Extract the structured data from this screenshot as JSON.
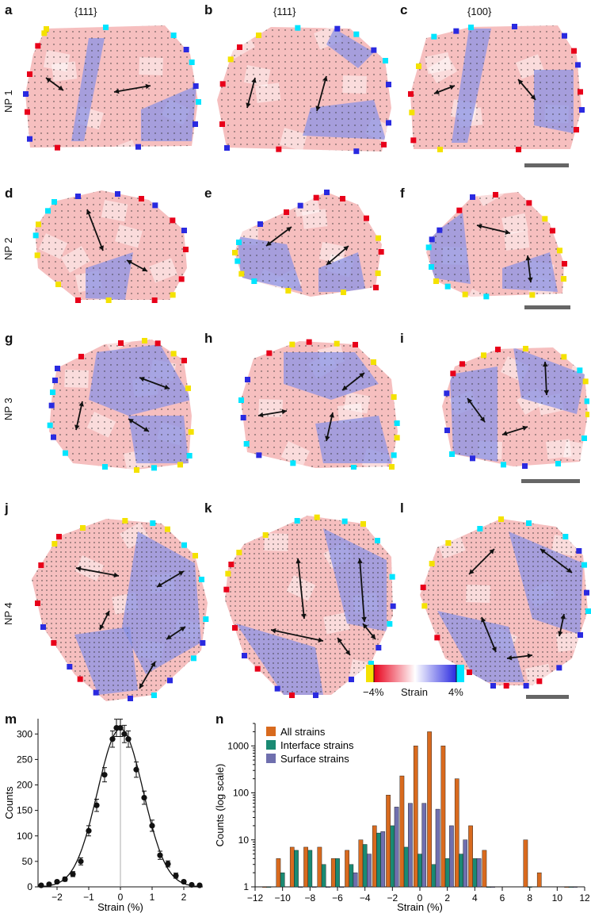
{
  "panel_labels": [
    "a",
    "b",
    "c",
    "d",
    "e",
    "f",
    "g",
    "h",
    "i",
    "j",
    "k",
    "l",
    "m",
    "n"
  ],
  "facets": [
    "{111}",
    "{111}",
    "{100}"
  ],
  "rows": [
    "NP 1",
    "NP 2",
    "NP 3",
    "NP 4"
  ],
  "colorbar": {
    "min_label": "−4%",
    "mid_label": "Strain",
    "max_label": "4%",
    "colors": [
      "#f4e200",
      "#e8001a",
      "#ffffff",
      "#2a2ae0",
      "#00e5ff"
    ]
  },
  "map_colors": {
    "tensile": "#ef8a8a",
    "compressive": "#8b93e6"
  },
  "chart_data": [
    {
      "type": "scatter",
      "panel": "m",
      "xlabel": "Strain (%)",
      "ylabel": "Counts",
      "xlim": [
        -2.6,
        2.6
      ],
      "ylim": [
        0,
        330
      ],
      "xticks": [
        -2,
        -1,
        0,
        1,
        2
      ],
      "yticks": [
        0,
        50,
        100,
        150,
        200,
        250,
        300
      ],
      "points": [
        {
          "x": -2.5,
          "y": 3,
          "err": 2
        },
        {
          "x": -2.25,
          "y": 5,
          "err": 2
        },
        {
          "x": -2.0,
          "y": 10,
          "err": 3
        },
        {
          "x": -1.75,
          "y": 15,
          "err": 4
        },
        {
          "x": -1.5,
          "y": 25,
          "err": 5
        },
        {
          "x": -1.25,
          "y": 50,
          "err": 7
        },
        {
          "x": -1.0,
          "y": 110,
          "err": 10
        },
        {
          "x": -0.75,
          "y": 160,
          "err": 12
        },
        {
          "x": -0.5,
          "y": 220,
          "err": 14
        },
        {
          "x": -0.25,
          "y": 290,
          "err": 16
        },
        {
          "x": -0.125,
          "y": 312,
          "err": 17
        },
        {
          "x": 0.0,
          "y": 312,
          "err": 17
        },
        {
          "x": 0.125,
          "y": 300,
          "err": 17
        },
        {
          "x": 0.25,
          "y": 290,
          "err": 16
        },
        {
          "x": 0.5,
          "y": 230,
          "err": 15
        },
        {
          "x": 0.75,
          "y": 175,
          "err": 13
        },
        {
          "x": 1.0,
          "y": 120,
          "err": 11
        },
        {
          "x": 1.25,
          "y": 62,
          "err": 8
        },
        {
          "x": 1.5,
          "y": 45,
          "err": 6
        },
        {
          "x": 1.75,
          "y": 22,
          "err": 5
        },
        {
          "x": 2.0,
          "y": 10,
          "err": 3
        },
        {
          "x": 2.25,
          "y": 4,
          "err": 2
        },
        {
          "x": 2.5,
          "y": 3,
          "err": 2
        }
      ],
      "fit": {
        "amplitude": 310,
        "center": 0.0,
        "sigma": 0.72
      }
    },
    {
      "type": "bar",
      "panel": "n",
      "xlabel": "Strain (%)",
      "ylabel": "Counts (log scale)",
      "log_y": true,
      "ylim": [
        1,
        3000
      ],
      "xlim": [
        -12,
        12
      ],
      "xticks": [
        -12,
        -10,
        -8,
        -6,
        -4,
        -2,
        0,
        2,
        4,
        6,
        8,
        10,
        12
      ],
      "yticks": [
        1,
        10,
        100,
        1000
      ],
      "legend": "top-left",
      "categories": [
        -11,
        -10,
        -9,
        -8,
        -7,
        -6,
        -5,
        -4,
        -3,
        -2,
        -1,
        0,
        1,
        2,
        3,
        4,
        5,
        8,
        9,
        11
      ],
      "series": [
        {
          "name": "All strains",
          "color": "#d86a1e",
          "values": [
            1,
            4,
            7,
            7,
            7,
            4,
            6,
            10,
            20,
            90,
            230,
            1000,
            2000,
            1000,
            200,
            20,
            6,
            10,
            2,
            1
          ]
        },
        {
          "name": "Interface strains",
          "color": "#1a8a73",
          "values": [
            1,
            2,
            6,
            6,
            3,
            4,
            3,
            8,
            14,
            20,
            7,
            5,
            3,
            4,
            5,
            4,
            1,
            1,
            null,
            1
          ]
        },
        {
          "name": "Surface strains",
          "color": "#6f6fae",
          "values": [
            null,
            null,
            1,
            1,
            1,
            1,
            2,
            5,
            15,
            50,
            60,
            60,
            45,
            20,
            10,
            4,
            1,
            null,
            null,
            1
          ]
        }
      ]
    }
  ]
}
